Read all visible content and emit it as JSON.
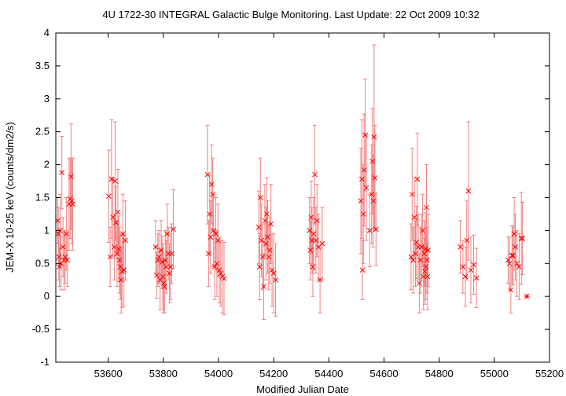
{
  "chart_data": {
    "type": "scatter",
    "title": "4U 1722-30   INTEGRAL Galactic Bulge Monitoring.  Last Update: 22 Oct 2009 10:32",
    "xlabel": "Modified Julian Date",
    "ylabel": "JEM-X 10-25 keV (counts/dm2/s)",
    "xlim": [
      53410,
      55200
    ],
    "ylim": [
      -1,
      4
    ],
    "x_ticks": [
      53600,
      53800,
      54000,
      54200,
      54400,
      54600,
      54800,
      55000,
      55200
    ],
    "y_ticks": [
      -1,
      -0.5,
      0,
      0.5,
      1,
      1.5,
      2,
      2.5,
      3,
      3.5,
      4
    ],
    "grid": false,
    "marker_color": "#ff0000",
    "errorbar_color": "#f08080",
    "series": [
      {
        "points": [
          [
            53417,
            1.15,
            0.35
          ],
          [
            53419,
            0.95,
            0.4
          ],
          [
            53421,
            0.6,
            0.35
          ],
          [
            53423,
            0.45,
            0.3
          ],
          [
            53426,
            1.0,
            0.55
          ],
          [
            53429,
            0.5,
            0.4
          ],
          [
            53432,
            1.88,
            0.55
          ],
          [
            53436,
            0.75,
            0.45
          ],
          [
            53440,
            0.55,
            0.45
          ],
          [
            53444,
            0.6,
            0.4
          ],
          [
            53448,
            0.95,
            0.55
          ],
          [
            53452,
            0.55,
            0.4
          ],
          [
            53458,
            1.4,
            0.7
          ],
          [
            53462,
            1.48,
            0.6
          ],
          [
            53465,
            1.82,
            0.8
          ],
          [
            53468,
            1.45,
            0.65
          ],
          [
            53471,
            1.4,
            0.7
          ],
          [
            53602,
            1.52,
            0.7
          ],
          [
            53607,
            0.6,
            0.45
          ],
          [
            53612,
            1.78,
            0.9
          ],
          [
            53617,
            1.2,
            0.6
          ],
          [
            53622,
            0.75,
            0.5
          ],
          [
            53625,
            1.75,
            0.9
          ],
          [
            53628,
            1.12,
            0.55
          ],
          [
            53632,
            0.65,
            0.5
          ],
          [
            53635,
            1.28,
            0.65
          ],
          [
            53638,
            0.72,
            0.5
          ],
          [
            53641,
            0.55,
            0.5
          ],
          [
            53644,
            0.45,
            0.5
          ],
          [
            53647,
            0.25,
            0.5
          ],
          [
            53650,
            0.38,
            0.55
          ],
          [
            53653,
            0.95,
            0.6
          ],
          [
            53657,
            0.4,
            0.55
          ],
          [
            53662,
            0.85,
            0.6
          ],
          [
            53772,
            0.75,
            0.4
          ],
          [
            53776,
            0.32,
            0.35
          ],
          [
            53780,
            0.55,
            0.4
          ],
          [
            53784,
            0.6,
            0.4
          ],
          [
            53788,
            0.25,
            0.45
          ],
          [
            53792,
            0.7,
            0.45
          ],
          [
            53795,
            0.52,
            0.4
          ],
          [
            53798,
            0.3,
            0.5
          ],
          [
            53801,
            0.2,
            0.45
          ],
          [
            53804,
            0.15,
            0.4
          ],
          [
            53807,
            0.55,
            0.45
          ],
          [
            53810,
            0.45,
            0.4
          ],
          [
            53814,
            0.95,
            0.45
          ],
          [
            53818,
            0.65,
            0.4
          ],
          [
            53822,
            0.35,
            0.45
          ],
          [
            53826,
            0.45,
            0.5
          ],
          [
            53830,
            0.65,
            0.45
          ],
          [
            53836,
            1.02,
            0.6
          ],
          [
            53960,
            1.85,
            0.75
          ],
          [
            53964,
            0.65,
            0.5
          ],
          [
            53968,
            1.25,
            0.6
          ],
          [
            53971,
            0.9,
            0.55
          ],
          [
            53975,
            1.7,
            0.6
          ],
          [
            53979,
            1.55,
            0.55
          ],
          [
            53982,
            1.0,
            0.55
          ],
          [
            53986,
            0.45,
            0.5
          ],
          [
            53990,
            0.95,
            0.55
          ],
          [
            53994,
            0.5,
            0.5
          ],
          [
            53998,
            0.85,
            0.55
          ],
          [
            54003,
            0.4,
            0.5
          ],
          [
            54008,
            0.35,
            0.5
          ],
          [
            54014,
            0.3,
            0.55
          ],
          [
            54020,
            0.27,
            0.55
          ],
          [
            54146,
            1.05,
            0.55
          ],
          [
            54149,
            0.45,
            0.5
          ],
          [
            54152,
            1.5,
            0.6
          ],
          [
            54156,
            0.85,
            0.55
          ],
          [
            54160,
            0.6,
            0.5
          ],
          [
            54164,
            0.15,
            0.5
          ],
          [
            54168,
            1.15,
            0.55
          ],
          [
            54172,
            0.8,
            0.55
          ],
          [
            54175,
            1.25,
            0.55
          ],
          [
            54178,
            0.9,
            0.55
          ],
          [
            54182,
            0.6,
            0.5
          ],
          [
            54186,
            0.7,
            0.5
          ],
          [
            54190,
            1.1,
            0.6
          ],
          [
            54194,
            0.4,
            0.55
          ],
          [
            54200,
            0.35,
            0.6
          ],
          [
            54207,
            0.25,
            0.55
          ],
          [
            54330,
            1.0,
            0.5
          ],
          [
            54333,
            0.7,
            0.45
          ],
          [
            54336,
            1.2,
            0.55
          ],
          [
            54339,
            0.85,
            0.5
          ],
          [
            54342,
            0.45,
            0.45
          ],
          [
            54345,
            0.95,
            0.55
          ],
          [
            54349,
            1.85,
            0.75
          ],
          [
            54353,
            0.85,
            0.5
          ],
          [
            54357,
            1.15,
            0.55
          ],
          [
            54362,
            0.75,
            0.5
          ],
          [
            54368,
            0.25,
            0.5
          ],
          [
            54376,
            0.8,
            0.55
          ],
          [
            54516,
            1.45,
            0.8
          ],
          [
            54520,
            1.78,
            0.9
          ],
          [
            54522,
            0.4,
            0.45
          ],
          [
            54525,
            1.25,
            0.75
          ],
          [
            54528,
            1.92,
            0.85
          ],
          [
            54532,
            2.45,
            0.85
          ],
          [
            54536,
            1.65,
            0.8
          ],
          [
            54548,
            1.0,
            0.55
          ],
          [
            54555,
            1.55,
            0.75
          ],
          [
            54558,
            2.05,
            0.8
          ],
          [
            54561,
            1.45,
            0.7
          ],
          [
            54564,
            2.42,
            1.4
          ],
          [
            54567,
            1.8,
            0.8
          ],
          [
            54571,
            1.02,
            0.55
          ],
          [
            54698,
            0.6,
            0.5
          ],
          [
            54702,
            1.55,
            0.7
          ],
          [
            54706,
            0.55,
            0.5
          ],
          [
            54710,
            1.2,
            0.6
          ],
          [
            54714,
            0.65,
            0.5
          ],
          [
            54718,
            0.82,
            0.55
          ],
          [
            54721,
            1.78,
            0.7
          ],
          [
            54724,
            0.75,
            0.5
          ],
          [
            54728,
            0.2,
            0.45
          ],
          [
            54732,
            0.55,
            0.5
          ],
          [
            54736,
            0.75,
            0.5
          ],
          [
            54740,
            1.0,
            0.55
          ],
          [
            54743,
            0.3,
            0.5
          ],
          [
            54746,
            0.65,
            0.5
          ],
          [
            54748,
            0.38,
            0.5
          ],
          [
            54750,
            0.72,
            0.55
          ],
          [
            54752,
            0.45,
            0.5
          ],
          [
            54754,
            1.35,
            0.65
          ],
          [
            54756,
            0.55,
            0.5
          ],
          [
            54758,
            0.3,
            0.5
          ],
          [
            54760,
            0.7,
            0.55
          ],
          [
            54877,
            0.75,
            0.4
          ],
          [
            54886,
            0.45,
            0.4
          ],
          [
            54895,
            0.3,
            0.45
          ],
          [
            54900,
            0.85,
            0.6
          ],
          [
            54906,
            1.6,
            1.05
          ],
          [
            54915,
            0.4,
            0.5
          ],
          [
            54925,
            0.48,
            0.45
          ],
          [
            54935,
            0.28,
            0.45
          ],
          [
            55050,
            0.55,
            0.35
          ],
          [
            55055,
            0.5,
            0.4
          ],
          [
            55060,
            0.1,
            0.35
          ],
          [
            55064,
            0.62,
            0.45
          ],
          [
            55068,
            0.62,
            0.45
          ],
          [
            55072,
            0.95,
            0.55
          ],
          [
            55076,
            0.75,
            0.5
          ],
          [
            55082,
            0.5,
            0.5
          ],
          [
            55090,
            0.45,
            0.5
          ],
          [
            55098,
            0.88,
            0.7
          ],
          [
            55102,
            0.88,
            0.55
          ],
          [
            55118,
            0.0,
            0.0
          ]
        ]
      }
    ]
  }
}
